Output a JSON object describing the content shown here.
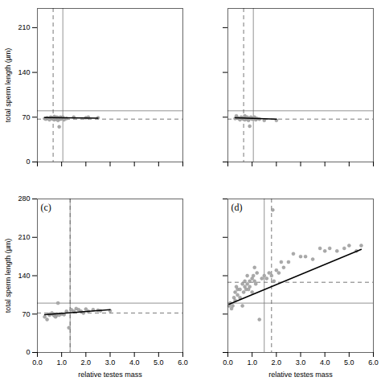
{
  "chart_data": [
    {
      "type": "scatter",
      "ylabel": "total sperm length (µm)",
      "xlim": [
        0,
        6
      ],
      "ylim": [
        0,
        240
      ],
      "xticks": [
        0,
        1,
        2,
        3,
        4,
        5,
        6
      ],
      "yticks": [
        0,
        70,
        140,
        210
      ],
      "tick_labels": "y",
      "series": [
        {
          "type": "scatter",
          "color": "#aaaaaa",
          "edge_color": "#888888",
          "x": [
            0.3,
            0.35,
            0.4,
            0.45,
            0.5,
            0.55,
            0.6,
            0.6,
            0.65,
            0.7,
            0.7,
            0.75,
            0.75,
            0.8,
            0.8,
            0.85,
            0.85,
            0.9,
            0.9,
            0.95,
            0.95,
            1.0,
            1.0,
            1.05,
            1.1,
            1.2,
            1.5,
            2.0,
            2.1,
            2.5
          ],
          "values": [
            68,
            67,
            69,
            68,
            66,
            70,
            68,
            69,
            67,
            66,
            71,
            69,
            68,
            67,
            70,
            65,
            69,
            55,
            68,
            70,
            67,
            69,
            68,
            70,
            66,
            68,
            70,
            69,
            70,
            69
          ]
        },
        {
          "type": "line",
          "color": "#000000",
          "line_style": "solid",
          "x": [
            0.3,
            2.5
          ],
          "values": [
            69.5,
            68.5
          ]
        }
      ],
      "hlines": [
        {
          "value": 80,
          "color": "#777777",
          "line_style": "solid"
        },
        {
          "value": 67,
          "color": "#555555",
          "line_style": "dashed"
        }
      ],
      "vlines": [
        {
          "value": 1.05,
          "color": "#777777",
          "line_style": "solid"
        },
        {
          "value": 0.65,
          "color": "#555555",
          "line_style": "dashed"
        }
      ]
    },
    {
      "type": "scatter",
      "xlim": [
        0,
        6
      ],
      "ylim": [
        0,
        240
      ],
      "xticks": [
        0,
        1,
        2,
        3,
        4,
        5,
        6
      ],
      "yticks": [
        0,
        70,
        140,
        210
      ],
      "tick_labels": false,
      "series": [
        {
          "type": "scatter",
          "color": "#aaaaaa",
          "edge_color": "#888888",
          "x": [
            0.3,
            0.35,
            0.4,
            0.45,
            0.5,
            0.55,
            0.6,
            0.65,
            0.7,
            0.7,
            0.75,
            0.8,
            0.8,
            0.85,
            0.9,
            0.9,
            0.95,
            1.0,
            1.05,
            1.1,
            1.15,
            1.2,
            1.3,
            1.5,
            2.0
          ],
          "values": [
            68,
            72,
            69,
            68,
            66,
            70,
            68,
            67,
            66,
            72,
            69,
            67,
            70,
            65,
            56,
            68,
            70,
            67,
            68,
            70,
            66,
            68,
            67,
            65,
            65
          ]
        },
        {
          "type": "line",
          "color": "#000000",
          "line_style": "solid",
          "x": [
            0.3,
            2.0
          ],
          "values": [
            69,
            67
          ]
        }
      ],
      "hlines": [
        {
          "value": 80,
          "color": "#777777",
          "line_style": "solid"
        },
        {
          "value": 67,
          "color": "#555555",
          "line_style": "dashed"
        }
      ],
      "vlines": [
        {
          "value": 1.05,
          "color": "#777777",
          "line_style": "solid"
        },
        {
          "value": 0.65,
          "color": "#555555",
          "line_style": "dashed"
        }
      ]
    },
    {
      "type": "scatter",
      "annotation": "(c)",
      "xlabel": "relative testes mass",
      "ylabel": "total sperm length (µm)",
      "xlim": [
        0,
        6
      ],
      "ylim": [
        0,
        280
      ],
      "xticks": [
        0,
        1,
        2,
        3,
        4,
        5,
        6
      ],
      "yticks": [
        0,
        70,
        140,
        210,
        280
      ],
      "series": [
        {
          "type": "scatter",
          "color": "#aaaaaa",
          "edge_color": "#888888",
          "x": [
            0.3,
            0.4,
            0.5,
            0.5,
            0.6,
            0.65,
            0.7,
            0.75,
            0.8,
            0.8,
            0.85,
            0.9,
            1.0,
            1.1,
            1.2,
            1.3,
            1.4,
            1.5,
            1.6,
            1.7,
            1.8,
            1.9,
            2.0,
            2.1,
            2.3,
            2.5,
            2.6,
            3.0
          ],
          "values": [
            65,
            60,
            68,
            70,
            72,
            69,
            67,
            65,
            68,
            70,
            90,
            68,
            70,
            69,
            75,
            45,
            78,
            75,
            80,
            78,
            75,
            72,
            79,
            75,
            78,
            77,
            76,
            76
          ]
        },
        {
          "type": "line",
          "color": "#000000",
          "line_style": "solid",
          "x": [
            0.3,
            3.0
          ],
          "values": [
            69,
            78
          ]
        }
      ],
      "hlines": [
        {
          "value": 90,
          "color": "#777777",
          "line_style": "solid"
        },
        {
          "value": 72,
          "color": "#555555",
          "line_style": "dashed"
        }
      ],
      "vlines": [
        {
          "value": 1.35,
          "color": "#777777",
          "line_style": "solid"
        },
        {
          "value": 1.35,
          "color": "#555555",
          "line_style": "dashed"
        }
      ]
    },
    {
      "type": "scatter",
      "annotation": "(d)",
      "xlabel": "relative testes mass",
      "xlim": [
        0,
        6
      ],
      "ylim": [
        0,
        280
      ],
      "xticks": [
        0,
        1,
        2,
        3,
        4,
        5,
        6
      ],
      "yticks": [
        0,
        70,
        140,
        210,
        280
      ],
      "tick_labels": "x",
      "series": [
        {
          "type": "scatter",
          "color": "#aaaaaa",
          "edge_color": "#888888",
          "x": [
            0.05,
            0.1,
            0.15,
            0.2,
            0.25,
            0.3,
            0.3,
            0.35,
            0.4,
            0.4,
            0.5,
            0.5,
            0.6,
            0.6,
            0.65,
            0.7,
            0.7,
            0.75,
            0.8,
            0.8,
            0.85,
            0.9,
            0.9,
            1.0,
            1.0,
            1.05,
            1.1,
            1.1,
            1.15,
            1.2,
            1.3,
            1.4,
            1.5,
            1.6,
            1.7,
            1.8,
            1.9,
            2.0,
            2.1,
            2.2,
            2.3,
            2.5,
            2.7,
            3.0,
            3.2,
            3.5,
            3.8,
            4.0,
            4.2,
            4.5,
            4.8,
            5.0,
            5.3,
            5.5,
            1.85
          ],
          "values": [
            85,
            90,
            80,
            85,
            100,
            95,
            110,
            120,
            105,
            115,
            100,
            115,
            85,
            125,
            110,
            130,
            120,
            115,
            125,
            140,
            115,
            120,
            130,
            110,
            135,
            140,
            130,
            155,
            125,
            145,
            60,
            135,
            140,
            135,
            145,
            140,
            130,
            150,
            145,
            165,
            155,
            165,
            180,
            175,
            175,
            170,
            190,
            185,
            190,
            185,
            190,
            195,
            185,
            195,
            260
          ]
        },
        {
          "type": "line",
          "color": "#000000",
          "line_style": "solid",
          "x": [
            0.05,
            5.5
          ],
          "values": [
            88,
            188
          ]
        }
      ],
      "hlines": [
        {
          "value": 90,
          "color": "#777777",
          "line_style": "solid"
        },
        {
          "value": 128,
          "color": "#555555",
          "line_style": "dashed"
        }
      ],
      "vlines": [
        {
          "value": 1.5,
          "color": "#777777",
          "line_style": "solid"
        },
        {
          "value": 1.8,
          "color": "#555555",
          "line_style": "dashed"
        }
      ]
    }
  ]
}
